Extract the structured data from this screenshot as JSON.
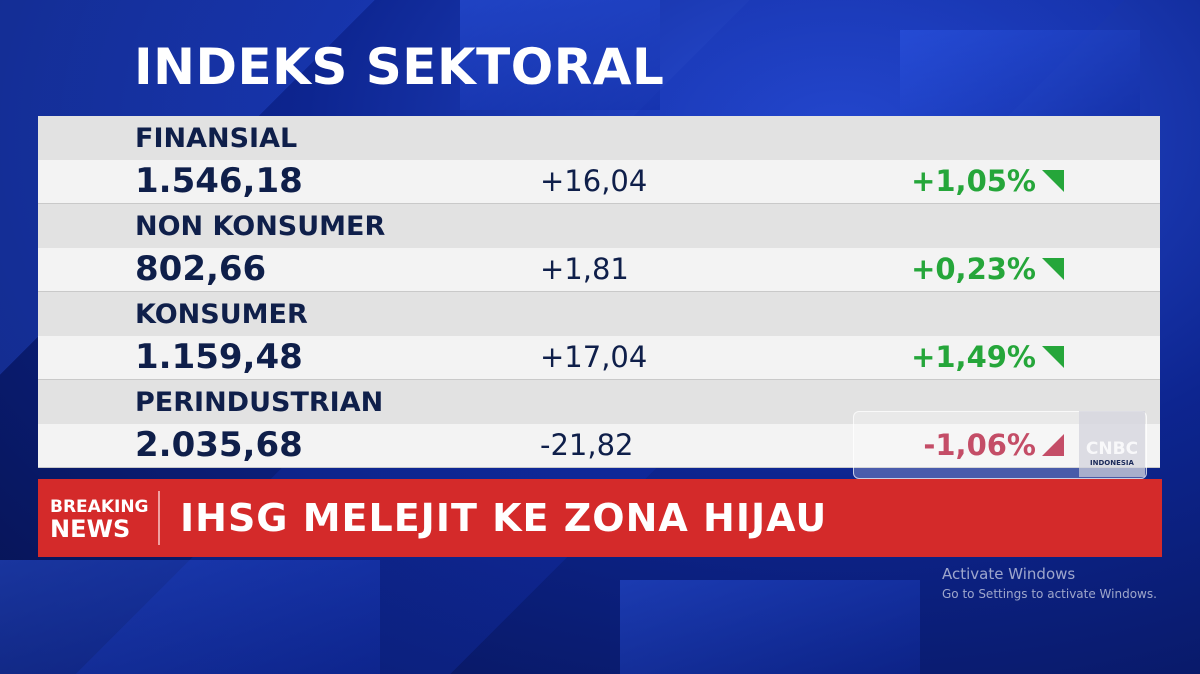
{
  "title": "INDEKS SEKTORAL",
  "rows": [
    {
      "sector": "FINANSIAL",
      "value": "1.546,18",
      "change": "+16,04",
      "percent": "+1,05%",
      "direction": "up"
    },
    {
      "sector": "NON KONSUMER",
      "value": "802,66",
      "change": "+1,81",
      "percent": "+0,23%",
      "direction": "up"
    },
    {
      "sector": "KONSUMER",
      "value": "1.159,48",
      "change": "+17,04",
      "percent": "+1,49%",
      "direction": "up"
    },
    {
      "sector": "PERINDUSTRIAN",
      "value": "2.035,68",
      "change": "-21,82",
      "percent": "-1,06%",
      "direction": "down"
    }
  ],
  "colors": {
    "up": "#25a63a",
    "down": "#b01234",
    "banner": "#d42a2a"
  },
  "banner": {
    "tag_line1": "BREAKING",
    "tag_line2": "NEWS",
    "headline": "IHSG MELEJIT KE ZONA HIJAU"
  },
  "logo": {
    "brand": "CNBC",
    "sub": "INDONESIA"
  },
  "activate": {
    "title": "Activate Windows",
    "subtitle": "Go to Settings to activate Windows."
  }
}
